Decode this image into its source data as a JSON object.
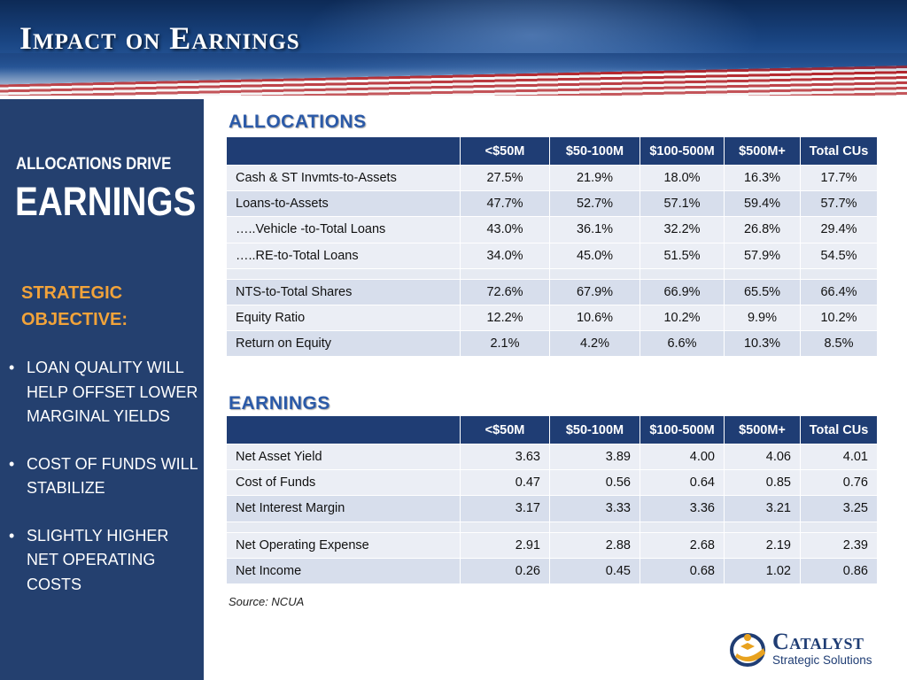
{
  "header": {
    "title": "Impact on Earnings"
  },
  "sidebar": {
    "line1": "ALLOCATIONS DRIVE",
    "line2": "EARNINGS",
    "objective": "STRATEGIC OBJECTIVE:",
    "bullets": [
      "LOAN QUALITY WILL HELP OFFSET LOWER MARGINAL YIELDS",
      "COST OF FUNDS WILL STABILIZE",
      "SLIGHTLY HIGHER NET OPERATING COSTS"
    ]
  },
  "allocations": {
    "heading": "ALLOCATIONS",
    "columns": [
      "<$50M",
      "$50-100M",
      "$100-500M",
      "$500M+",
      "Total CUs"
    ],
    "rows": [
      {
        "label": "Cash & ST Invmts-to-Assets",
        "values": [
          "27.5%",
          "21.9%",
          "18.0%",
          "16.3%",
          "17.7%"
        ]
      },
      {
        "label": "Loans-to-Assets",
        "values": [
          "47.7%",
          "52.7%",
          "57.1%",
          "59.4%",
          "57.7%"
        ]
      },
      {
        "label": "…..Vehicle -to-Total Loans",
        "values": [
          "43.0%",
          "36.1%",
          "32.2%",
          "26.8%",
          "29.4%"
        ]
      },
      {
        "label": "…..RE-to-Total Loans",
        "values": [
          "34.0%",
          "45.0%",
          "51.5%",
          "57.9%",
          "54.5%"
        ]
      },
      {
        "label": "NTS-to-Total Shares",
        "values": [
          "72.6%",
          "67.9%",
          "66.9%",
          "65.5%",
          "66.4%"
        ]
      },
      {
        "label": "Equity Ratio",
        "values": [
          "12.2%",
          "10.6%",
          "10.2%",
          "9.9%",
          "10.2%"
        ]
      },
      {
        "label": "Return on Equity",
        "values": [
          "2.1%",
          "4.2%",
          "6.6%",
          "10.3%",
          "8.5%"
        ]
      }
    ]
  },
  "earnings": {
    "heading": "EARNINGS",
    "columns": [
      "<$50M",
      "$50-100M",
      "$100-500M",
      "$500M+",
      "Total CUs"
    ],
    "rows": [
      {
        "label": "Net Asset Yield",
        "values": [
          "3.63",
          "3.89",
          "4.00",
          "4.06",
          "4.01"
        ]
      },
      {
        "label": "Cost of Funds",
        "values": [
          "0.47",
          "0.56",
          "0.64",
          "0.85",
          "0.76"
        ]
      },
      {
        "label": "Net Interest Margin",
        "values": [
          "3.17",
          "3.33",
          "3.36",
          "3.21",
          "3.25"
        ]
      },
      {
        "label": "Net Operating Expense",
        "values": [
          "2.91",
          "2.88",
          "2.68",
          "2.19",
          "2.39"
        ]
      },
      {
        "label": "Net Income",
        "values": [
          "0.26",
          "0.45",
          "0.68",
          "1.02",
          "0.86"
        ]
      }
    ]
  },
  "source": "Source: NCUA",
  "logo": {
    "brand": "Catalyst",
    "subtitle": "Strategic Solutions"
  },
  "colors": {
    "sidebar": "#24406f",
    "table_header": "#1f3d74",
    "accent_orange": "#f2a33a",
    "heading_blue": "#2b5aa8"
  }
}
